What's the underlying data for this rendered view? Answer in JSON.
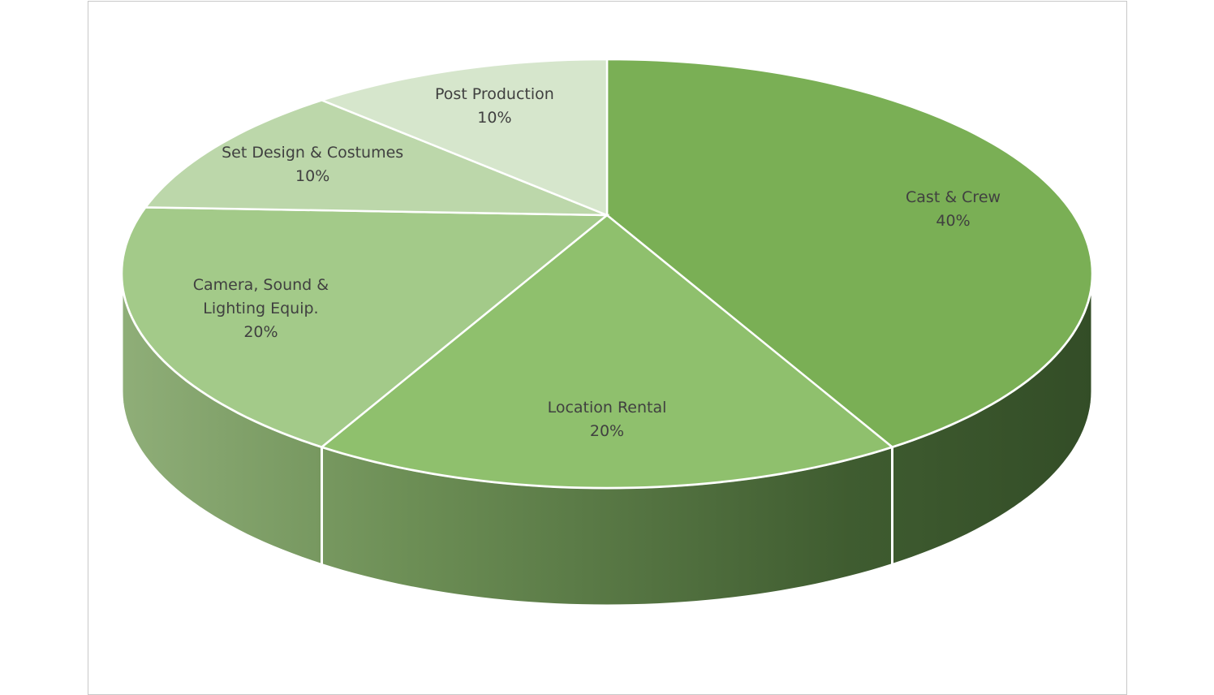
{
  "chart_data": {
    "type": "pie",
    "categories": [
      "Cast & Crew",
      "Location Rental",
      "Camera, Sound & Lighting Equip.",
      "Set Design & Costumes",
      "Post Production"
    ],
    "values": [
      40,
      20,
      20,
      10,
      10
    ],
    "value_labels": [
      "40%",
      "20%",
      "20%",
      "10%",
      "10%"
    ],
    "colors": [
      "#7aaf55",
      "#8fc06d",
      "#a3ca89",
      "#bcd7aa",
      "#d6e6cc"
    ]
  }
}
